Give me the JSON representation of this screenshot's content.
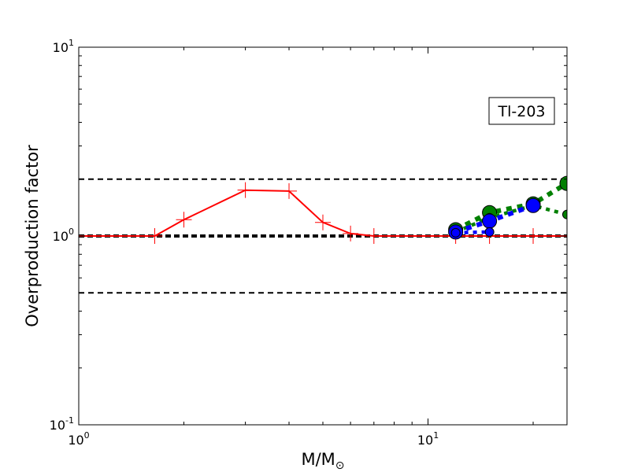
{
  "chart_data": {
    "type": "line",
    "title": "",
    "xlabel": "M/M",
    "xlabel_subscript": "⊙",
    "ylabel": "Overproduction factor",
    "xscale": "log",
    "yscale": "log",
    "xlim": [
      1,
      25
    ],
    "ylim": [
      0.1,
      10
    ],
    "xticks": [
      {
        "value": 1,
        "base": "10",
        "exp": "0"
      },
      {
        "value": 10,
        "base": "10",
        "exp": "1"
      }
    ],
    "yticks": [
      {
        "value": 0.1,
        "base": "10",
        "exp": "-1"
      },
      {
        "value": 1,
        "base": "10",
        "exp": "0"
      },
      {
        "value": 10,
        "base": "10",
        "exp": "1"
      }
    ],
    "grid": false,
    "annotation": "Tl-203",
    "reference_lines": [
      {
        "y": 2.0,
        "style": "dashed",
        "color": "#000000"
      },
      {
        "y": 1.0,
        "style": "dashed-thick",
        "color": "#000000"
      },
      {
        "y": 0.5,
        "style": "dashed",
        "color": "#000000"
      }
    ],
    "series": [
      {
        "color": "#ff0000",
        "style": "solid",
        "marker": "plus",
        "x": [
          1.0,
          1.65,
          2.0,
          3.0,
          4.0,
          5.0,
          6.0,
          7.0,
          12.0,
          15.0,
          20.0,
          25.0
        ],
        "y": [
          1.0,
          1.0,
          1.22,
          1.75,
          1.73,
          1.18,
          1.03,
          1.0,
          1.0,
          1.0,
          1.0,
          1.0
        ]
      },
      {
        "color": "#008000",
        "style": "dotted",
        "marker": "circle",
        "x": [
          12.0,
          15.0,
          20.0,
          25.0
        ],
        "y": [
          1.08,
          1.33,
          1.48,
          1.9
        ]
      },
      {
        "color": "#008000",
        "style": "dotted",
        "marker": "circle-small",
        "x": [
          12.0,
          15.0,
          20.0,
          25.0
        ],
        "y": [
          1.05,
          1.25,
          1.45,
          1.3
        ]
      },
      {
        "color": "#0000ff",
        "style": "dotted",
        "marker": "circle",
        "x": [
          12.0,
          15.0,
          20.0
        ],
        "y": [
          1.05,
          1.2,
          1.45
        ]
      },
      {
        "color": "#0000ff",
        "style": "dotted",
        "marker": "circle-small",
        "x": [
          12.0,
          15.0
        ],
        "y": [
          1.04,
          1.05
        ]
      }
    ]
  }
}
